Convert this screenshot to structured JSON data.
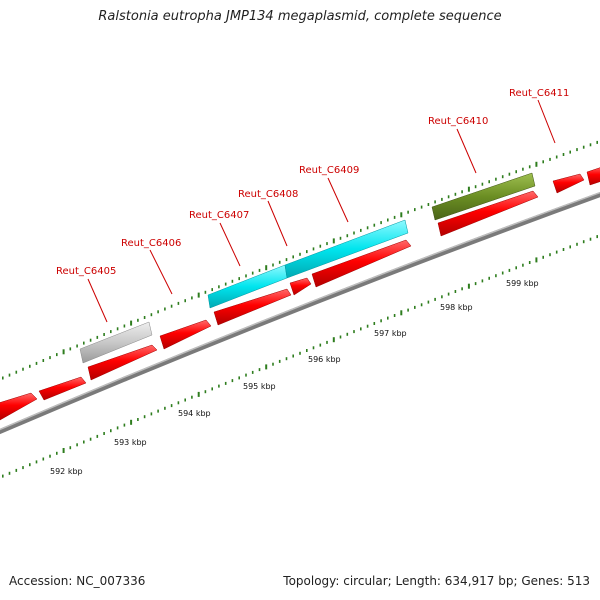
{
  "title": "Ralstonia eutropha JMP134 megaplasmid, complete sequence",
  "footer": {
    "accession": "Accession: NC_007336",
    "topology": "Topology: circular; Length: 634,917 bp; Genes: 513"
  },
  "scale_labels": [
    "592 kbp",
    "593 kbp",
    "594 kbp",
    "595 kbp",
    "596 kbp",
    "597 kbp",
    "598 kbp",
    "599 kbp"
  ],
  "gene_labels": [
    "Reut_C6405",
    "Reut_C6406",
    "Reut_C6407",
    "Reut_C6408",
    "Reut_C6409",
    "Reut_C6410",
    "Reut_C6411"
  ],
  "colors": {
    "cds": "#ff0000",
    "backbone": "#808080",
    "tick": "#2e7d1e",
    "label": "#cc0000",
    "feature_gray": "#c8c8c8",
    "feature_cyan": "#00e5ee",
    "feature_olive": "#6b8e23"
  }
}
